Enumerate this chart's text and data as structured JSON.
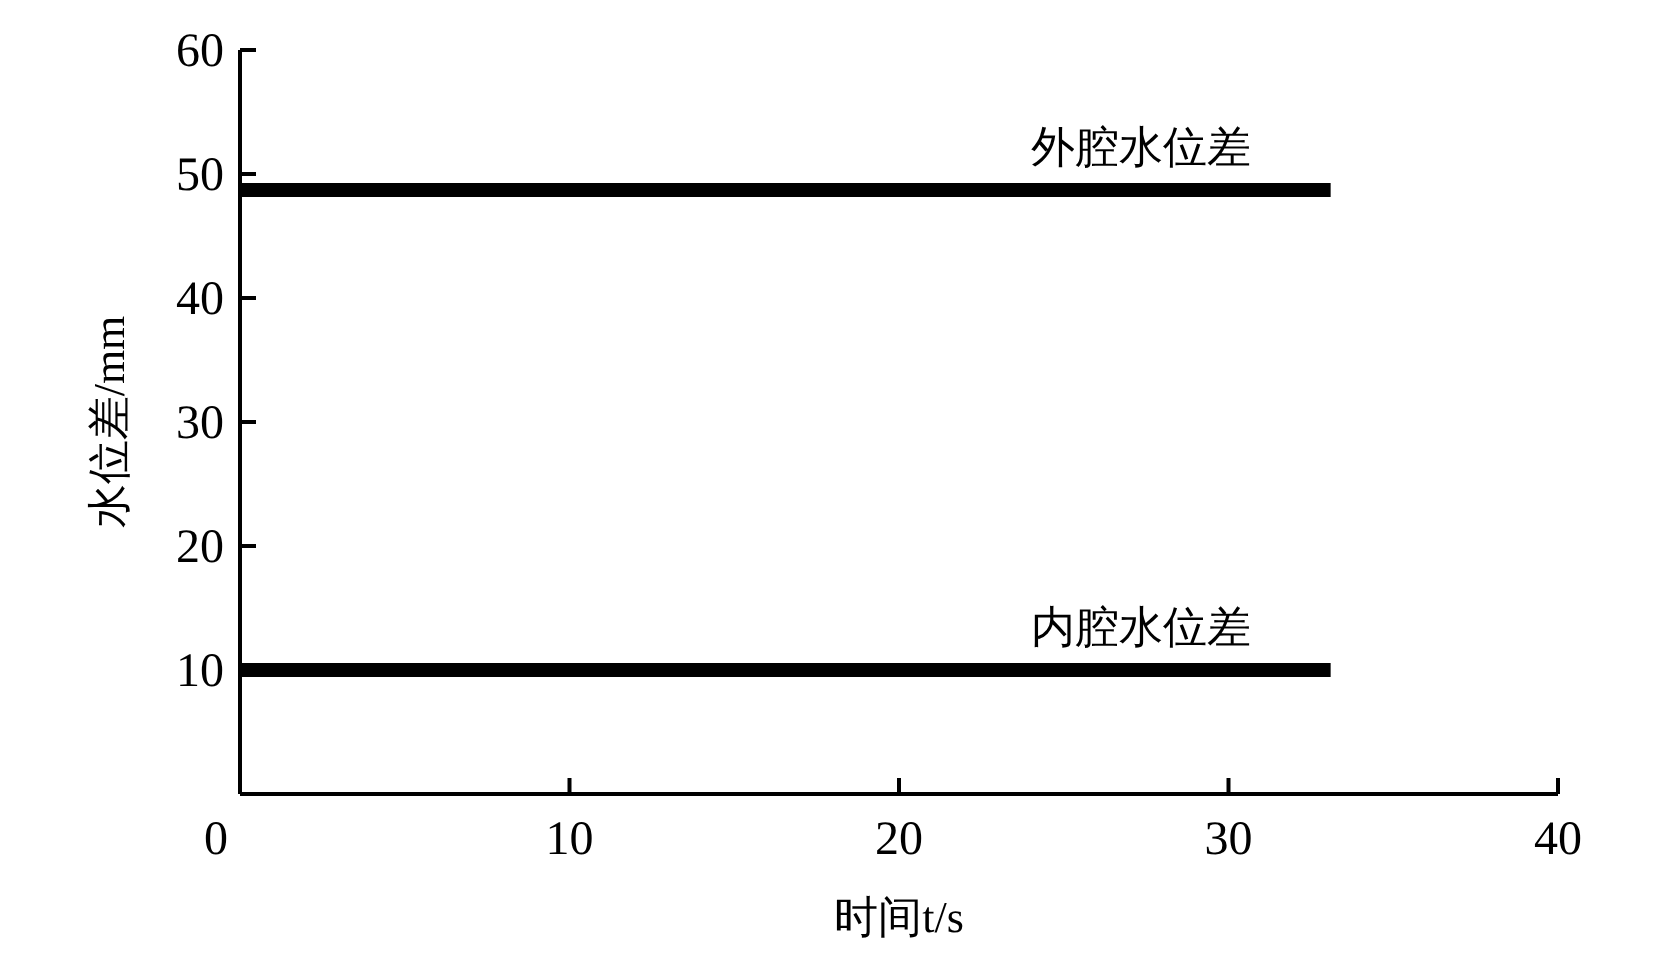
{
  "chart_data": {
    "type": "line",
    "xlabel": "时间t/s",
    "ylabel": "水位差/mm",
    "xlim": [
      0,
      40
    ],
    "ylim": [
      0,
      60
    ],
    "xticks": [
      0,
      10,
      20,
      30,
      40
    ],
    "yticks": [
      {
        "value": 0,
        "label": null
      },
      10,
      20,
      30,
      40,
      50,
      60
    ],
    "grid": false,
    "marker": "none",
    "line_style": "solid",
    "x": [
      0,
      33.1
    ],
    "series": [
      {
        "name": "外腔水位差",
        "color": "#000000",
        "values": [
          48.7,
          48.7
        ]
      },
      {
        "name": "内腔水位差",
        "color": "#000000",
        "values": [
          10,
          10
        ]
      }
    ]
  }
}
